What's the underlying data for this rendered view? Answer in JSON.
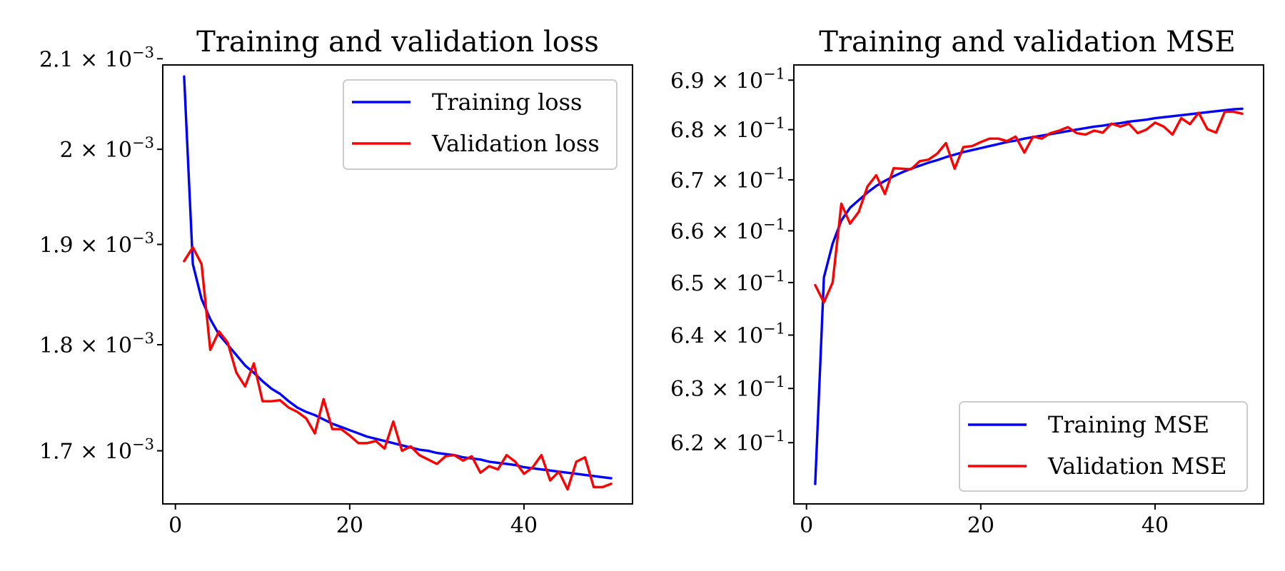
{
  "chart_data": [
    {
      "type": "line",
      "title": "Training and validation loss",
      "xlabel": "",
      "ylabel": "",
      "yscale": "log",
      "xlim": [
        -1.45,
        52.45
      ],
      "ylim": [
        0.001652,
        0.002093
      ],
      "xticks": [
        {
          "value": 0,
          "label": "0"
        },
        {
          "value": 20,
          "label": "20"
        },
        {
          "value": 40,
          "label": "40"
        }
      ],
      "yticks": [
        {
          "value": 0.0017,
          "mantissa": "1.7",
          "exponent": "−3"
        },
        {
          "value": 0.0018,
          "mantissa": "1.8",
          "exponent": "−3"
        },
        {
          "value": 0.0019,
          "mantissa": "1.9",
          "exponent": "−3"
        },
        {
          "value": 0.002,
          "mantissa": "2",
          "exponent": "−3"
        },
        {
          "value": 0.0021,
          "mantissa": "2.1",
          "exponent": "−3"
        }
      ],
      "tick_base": "10",
      "legend": {
        "position": "upper right"
      },
      "x": [
        1,
        2,
        3,
        4,
        5,
        6,
        7,
        8,
        9,
        10,
        11,
        12,
        13,
        14,
        15,
        16,
        17,
        18,
        19,
        20,
        21,
        22,
        23,
        24,
        25,
        26,
        27,
        28,
        29,
        30,
        31,
        32,
        33,
        34,
        35,
        36,
        37,
        38,
        39,
        40,
        41,
        42,
        43,
        44,
        45,
        46,
        47,
        48,
        49,
        50
      ],
      "series": [
        {
          "name": "Training loss",
          "color": "#0000ff",
          "values": [
            0.00208,
            0.00188,
            0.001845,
            0.001825,
            0.00181,
            0.0018,
            0.00179,
            0.00178,
            0.001773,
            0.001765,
            0.001758,
            0.001753,
            0.001746,
            0.00174,
            0.001736,
            0.001733,
            0.001729,
            0.001725,
            0.001722,
            0.001719,
            0.001716,
            0.001713,
            0.001711,
            0.001709,
            0.001707,
            0.001705,
            0.001703,
            0.001701,
            0.0017,
            0.001698,
            0.001697,
            0.001696,
            0.001694,
            0.001693,
            0.001692,
            0.00169,
            0.001689,
            0.001688,
            0.001687,
            0.001685,
            0.001684,
            0.001683,
            0.001682,
            0.001681,
            0.00168,
            0.001679,
            0.001678,
            0.001677,
            0.001676,
            0.001675
          ]
        },
        {
          "name": "Validation loss",
          "color": "#ff0000",
          "values": [
            0.001883,
            0.001897,
            0.00188,
            0.001795,
            0.001813,
            0.001802,
            0.001773,
            0.00176,
            0.001782,
            0.001746,
            0.001746,
            0.001747,
            0.00174,
            0.001736,
            0.00173,
            0.001716,
            0.001748,
            0.00172,
            0.00172,
            0.001714,
            0.001707,
            0.001707,
            0.001709,
            0.001702,
            0.001727,
            0.0017,
            0.001704,
            0.001696,
            0.001692,
            0.001688,
            0.001695,
            0.001696,
            0.001691,
            0.001695,
            0.00168,
            0.001686,
            0.001683,
            0.001696,
            0.00169,
            0.001679,
            0.001685,
            0.001696,
            0.001673,
            0.001681,
            0.001665,
            0.00169,
            0.001694,
            0.001667,
            0.001667,
            0.00167
          ]
        }
      ]
    },
    {
      "type": "line",
      "title": "Training and validation MSE",
      "xlabel": "",
      "ylabel": "",
      "yscale": "log",
      "xlim": [
        -1.45,
        52.45
      ],
      "ylim": [
        0.6089,
        0.6931
      ],
      "xticks": [
        {
          "value": 0,
          "label": "0"
        },
        {
          "value": 20,
          "label": "20"
        },
        {
          "value": 40,
          "label": "40"
        }
      ],
      "yticks": [
        {
          "value": 0.62,
          "mantissa": "6.2",
          "exponent": "−1"
        },
        {
          "value": 0.63,
          "mantissa": "6.3",
          "exponent": "−1"
        },
        {
          "value": 0.64,
          "mantissa": "6.4",
          "exponent": "−1"
        },
        {
          "value": 0.65,
          "mantissa": "6.5",
          "exponent": "−1"
        },
        {
          "value": 0.66,
          "mantissa": "6.6",
          "exponent": "−1"
        },
        {
          "value": 0.67,
          "mantissa": "6.7",
          "exponent": "−1"
        },
        {
          "value": 0.68,
          "mantissa": "6.8",
          "exponent": "−1"
        },
        {
          "value": 0.69,
          "mantissa": "6.9",
          "exponent": "−1"
        }
      ],
      "tick_base": "10",
      "legend": {
        "position": "lower right"
      },
      "x": [
        1,
        2,
        3,
        4,
        5,
        6,
        7,
        8,
        9,
        10,
        11,
        12,
        13,
        14,
        15,
        16,
        17,
        18,
        19,
        20,
        21,
        22,
        23,
        24,
        25,
        26,
        27,
        28,
        29,
        30,
        31,
        32,
        33,
        34,
        35,
        36,
        37,
        38,
        39,
        40,
        41,
        42,
        43,
        44,
        45,
        46,
        47,
        48,
        49,
        50
      ],
      "series": [
        {
          "name": "Training MSE",
          "color": "#0000ff",
          "values": [
            0.6125,
            0.651,
            0.6575,
            0.662,
            0.6645,
            0.666,
            0.6675,
            0.6688,
            0.6698,
            0.6707,
            0.6715,
            0.6722,
            0.6728,
            0.6734,
            0.6739,
            0.6745,
            0.675,
            0.6755,
            0.6759,
            0.6763,
            0.6767,
            0.6771,
            0.6775,
            0.6778,
            0.6782,
            0.6785,
            0.6788,
            0.6791,
            0.6794,
            0.6797,
            0.68,
            0.6803,
            0.6806,
            0.6808,
            0.6811,
            0.6813,
            0.6816,
            0.6818,
            0.682,
            0.6823,
            0.6825,
            0.6827,
            0.6829,
            0.6831,
            0.6833,
            0.6835,
            0.6837,
            0.6839,
            0.6841,
            0.6842
          ]
        },
        {
          "name": "Validation MSE",
          "color": "#ff0000",
          "values": [
            0.6495,
            0.6462,
            0.65,
            0.6653,
            0.6614,
            0.6637,
            0.6687,
            0.6709,
            0.6672,
            0.6723,
            0.6722,
            0.6721,
            0.6737,
            0.674,
            0.6752,
            0.6773,
            0.6722,
            0.6765,
            0.6767,
            0.6775,
            0.6782,
            0.6782,
            0.6777,
            0.6786,
            0.6754,
            0.6786,
            0.6782,
            0.6793,
            0.6798,
            0.6805,
            0.6793,
            0.679,
            0.6798,
            0.6794,
            0.6812,
            0.6806,
            0.6812,
            0.6793,
            0.68,
            0.6814,
            0.6806,
            0.679,
            0.6823,
            0.6811,
            0.6834,
            0.6801,
            0.6794,
            0.6836,
            0.6836,
            0.6832
          ]
        }
      ]
    }
  ]
}
